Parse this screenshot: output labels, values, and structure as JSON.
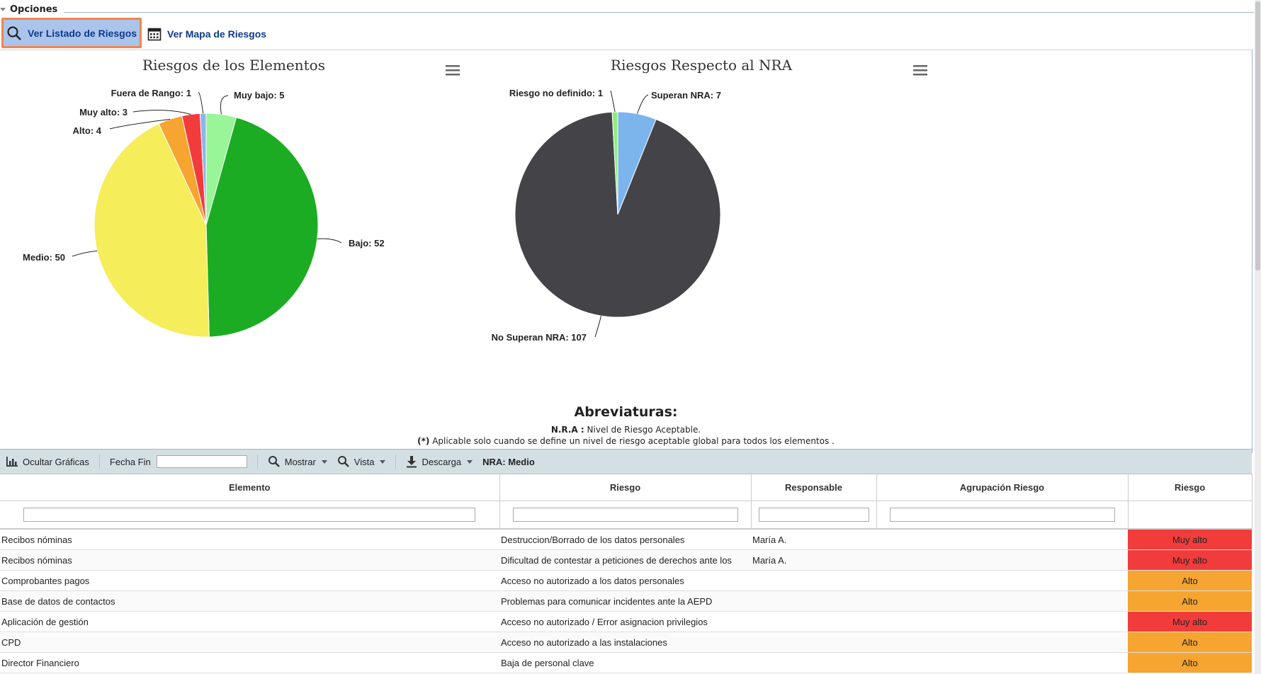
{
  "options": {
    "legend": "Opciones",
    "listado_label": "Ver Listado de Riesgos",
    "mapa_label": "Ver Mapa de Riesgos"
  },
  "chart_data": [
    {
      "type": "pie",
      "title": "Riesgos de los Elementos",
      "slices": [
        {
          "label": "Muy bajo: 5",
          "name": "Muy bajo",
          "value": 5,
          "color": "#98f598"
        },
        {
          "label": "Bajo: 52",
          "name": "Bajo",
          "value": 52,
          "color": "#1cac24"
        },
        {
          "label": "Medio: 50",
          "name": "Medio",
          "value": 50,
          "color": "#f5ed5a"
        },
        {
          "label": "Alto: 4",
          "name": "Alto",
          "value": 4,
          "color": "#f5a530"
        },
        {
          "label": "Muy alto: 3",
          "name": "Muy alto",
          "value": 3,
          "color": "#f23c3c"
        },
        {
          "label": "Fuera de Rango: 1",
          "name": "Fuera de Rango",
          "value": 1,
          "color": "#8fb4ee"
        }
      ]
    },
    {
      "type": "pie",
      "title": "Riesgos Respecto al NRA",
      "slices": [
        {
          "label": "Superan NRA: 7",
          "name": "Superan NRA",
          "value": 7,
          "color": "#7cb4ec"
        },
        {
          "label": "No Superan NRA: 107",
          "name": "No Superan NRA",
          "value": 107,
          "color": "#434348"
        },
        {
          "label": "Riesgo no definido: 1",
          "name": "Riesgo no definido",
          "value": 1,
          "color": "#90ed7d"
        }
      ]
    }
  ],
  "abbreviations": {
    "title": "Abreviaturas:",
    "nra_key": "N.R.A :",
    "nra_value": "Nivel de Riesgo Aceptable.",
    "star_key": "(*)",
    "star_value": "Aplicable solo cuando se define un nivel de riesgo aceptable global para todos los elementos ."
  },
  "toolbar": {
    "hide_charts": "Ocultar Gráficas",
    "fecha_fin": "Fecha Fin",
    "mostrar": "Mostrar",
    "vista": "Vista",
    "descarga": "Descarga",
    "nra": "NRA: Medio"
  },
  "colors": {
    "muy_alto": "#f23c3c",
    "alto": "#f5a530"
  },
  "table": {
    "headers": [
      "Elemento",
      "Riesgo",
      "Responsable",
      "Agrupación Riesgo",
      "Riesgo"
    ],
    "rows": [
      {
        "elemento": "Recibos nóminas",
        "riesgo": "Destruccion/Borrado de los datos personales",
        "responsable": "María A.",
        "agrupacion": "",
        "nivel": "Muy alto",
        "nivel_key": "muy_alto"
      },
      {
        "elemento": "Recibos nóminas",
        "riesgo": "Dificultad de contestar a peticiones de derechos ante los",
        "responsable": "María A.",
        "agrupacion": "",
        "nivel": "Muy alto",
        "nivel_key": "muy_alto"
      },
      {
        "elemento": "Comprobantes pagos",
        "riesgo": "Acceso no autorizado a los datos personales",
        "responsable": "",
        "agrupacion": "",
        "nivel": "Alto",
        "nivel_key": "alto"
      },
      {
        "elemento": "Base de datos de contactos",
        "riesgo": "Problemas para comunicar incidentes ante la AEPD",
        "responsable": "",
        "agrupacion": "",
        "nivel": "Alto",
        "nivel_key": "alto"
      },
      {
        "elemento": "Aplicación de gestión",
        "riesgo": "Acceso no autorizado / Error asignacion privilegios",
        "responsable": "",
        "agrupacion": "",
        "nivel": "Muy alto",
        "nivel_key": "muy_alto"
      },
      {
        "elemento": "CPD",
        "riesgo": "Acceso no autorizado a las instalaciones",
        "responsable": "",
        "agrupacion": "",
        "nivel": "Alto",
        "nivel_key": "alto"
      },
      {
        "elemento": "Director Financiero",
        "riesgo": "Baja de personal clave",
        "responsable": "",
        "agrupacion": "",
        "nivel": "Alto",
        "nivel_key": "alto"
      }
    ]
  }
}
